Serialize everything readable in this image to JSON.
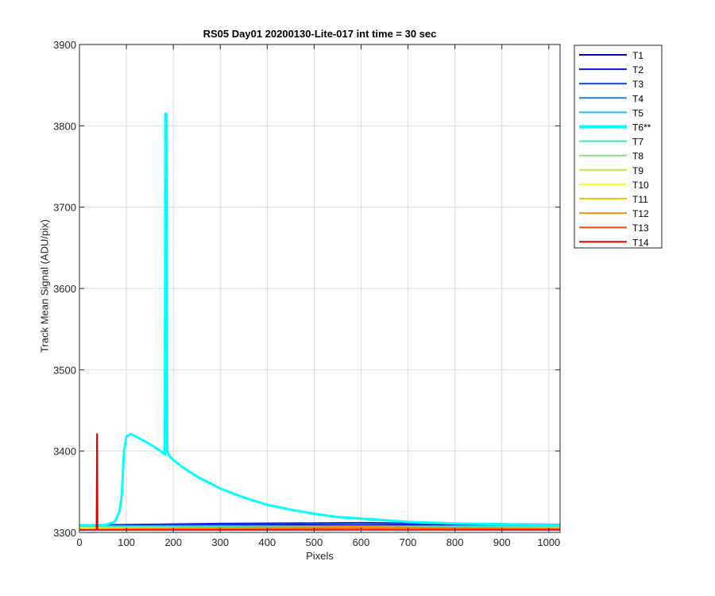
{
  "chart_data": {
    "type": "line",
    "title": "RS05 Day01 20200130-Lite-017 int time = 30 sec",
    "xlabel": "Pixels",
    "ylabel": "Track Mean Signal (ADU/pix)",
    "xlim": [
      0,
      1024
    ],
    "ylim": [
      3300,
      3900
    ],
    "xticks": [
      0,
      100,
      200,
      300,
      400,
      500,
      600,
      700,
      800,
      900,
      1000
    ],
    "yticks": [
      3300,
      3400,
      3500,
      3600,
      3700,
      3800,
      3900
    ],
    "grid": true,
    "legend_position": "outside-top-right",
    "series": [
      {
        "name": "T1",
        "color": "#0000a8",
        "values": [
          [
            0,
            3309
          ],
          [
            1024,
            3309
          ]
        ]
      },
      {
        "name": "T2",
        "color": "#0018d8",
        "values": [
          [
            0,
            3309
          ],
          [
            300,
            3311
          ],
          [
            600,
            3312
          ],
          [
            1024,
            3310
          ]
        ]
      },
      {
        "name": "T3",
        "color": "#0048e8",
        "values": [
          [
            0,
            3309
          ],
          [
            300,
            3310
          ],
          [
            600,
            3311
          ],
          [
            1024,
            3309
          ]
        ]
      },
      {
        "name": "T4",
        "color": "#1e82e6",
        "values": [
          [
            0,
            3308
          ],
          [
            1024,
            3308
          ]
        ]
      },
      {
        "name": "T5",
        "color": "#18bfef",
        "values": [
          [
            0,
            3308
          ],
          [
            1024,
            3308
          ]
        ]
      },
      {
        "name": "T6**",
        "color": "#00ffff",
        "highlight": true,
        "values": [
          [
            0,
            3309
          ],
          [
            40,
            3308
          ],
          [
            60,
            3310
          ],
          [
            75,
            3313
          ],
          [
            85,
            3325
          ],
          [
            90,
            3345
          ],
          [
            95,
            3400
          ],
          [
            100,
            3418
          ],
          [
            110,
            3421
          ],
          [
            120,
            3418
          ],
          [
            140,
            3412
          ],
          [
            160,
            3405
          ],
          [
            178,
            3398
          ],
          [
            182,
            3396
          ],
          [
            183,
            3815
          ],
          [
            185,
            3815
          ],
          [
            187,
            3400
          ],
          [
            190,
            3395
          ],
          [
            200,
            3389
          ],
          [
            220,
            3380
          ],
          [
            250,
            3369
          ],
          [
            300,
            3354
          ],
          [
            350,
            3343
          ],
          [
            400,
            3334
          ],
          [
            450,
            3328
          ],
          [
            500,
            3323
          ],
          [
            550,
            3319
          ],
          [
            600,
            3317
          ],
          [
            650,
            3315
          ],
          [
            700,
            3313
          ],
          [
            800,
            3311
          ],
          [
            900,
            3310
          ],
          [
            1024,
            3309
          ]
        ]
      },
      {
        "name": "T7",
        "color": "#3fe5bc",
        "values": [
          [
            0,
            3307
          ],
          [
            1024,
            3307
          ]
        ]
      },
      {
        "name": "T8",
        "color": "#7ae582",
        "values": [
          [
            0,
            3306
          ],
          [
            1024,
            3306
          ]
        ]
      },
      {
        "name": "T9",
        "color": "#bbef3a",
        "values": [
          [
            0,
            3306
          ],
          [
            1024,
            3306
          ]
        ]
      },
      {
        "name": "T10",
        "color": "#ffff00",
        "values": [
          [
            0,
            3305
          ],
          [
            1024,
            3305
          ]
        ]
      },
      {
        "name": "T11",
        "color": "#f2c40c",
        "values": [
          [
            0,
            3304
          ],
          [
            300,
            3305
          ],
          [
            600,
            3306
          ],
          [
            1024,
            3304
          ]
        ]
      },
      {
        "name": "T12",
        "color": "#ff8c00",
        "values": [
          [
            0,
            3304
          ],
          [
            300,
            3306
          ],
          [
            600,
            3307
          ],
          [
            1024,
            3305
          ]
        ]
      },
      {
        "name": "T13",
        "color": "#ff4a00",
        "values": [
          [
            0,
            3303
          ],
          [
            300,
            3304
          ],
          [
            600,
            3305
          ],
          [
            1024,
            3304
          ]
        ]
      },
      {
        "name": "T14",
        "color": "#e60000",
        "values": [
          [
            0,
            3303
          ],
          [
            36,
            3303
          ],
          [
            37,
            3421
          ],
          [
            38,
            3421
          ],
          [
            39,
            3303
          ],
          [
            300,
            3303
          ],
          [
            600,
            3303
          ],
          [
            1024,
            3303
          ]
        ]
      }
    ]
  }
}
